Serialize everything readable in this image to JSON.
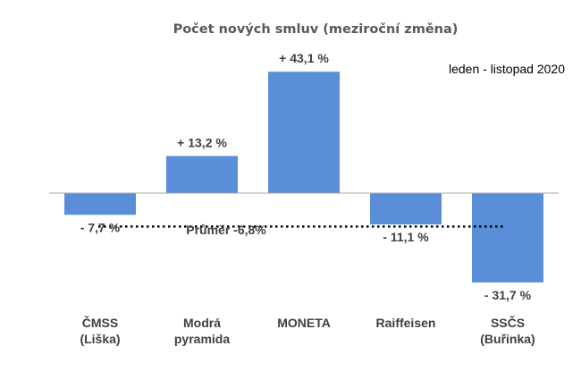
{
  "chart_data": {
    "type": "bar",
    "title": "Počet nových smluv (meziroční změna)",
    "subtitle": "leden - listopad 2020",
    "categories": [
      [
        "ČMSS",
        "(Liška)"
      ],
      [
        "Modrá",
        "pyramida"
      ],
      [
        "MONETA"
      ],
      [
        "Raiffeisen"
      ],
      [
        "SSČS",
        "(Buřinka)"
      ]
    ],
    "values": [
      -7.7,
      13.2,
      43.1,
      -11.1,
      -31.7
    ],
    "data_labels": [
      "- 7,7 %",
      "+ 13,2 %",
      "+ 43,1 %",
      "- 11,1 %",
      "- 31,7 %"
    ],
    "average": {
      "value": -6.8,
      "label": "Průměr -6,8%"
    },
    "ylim": [
      -33,
      44
    ],
    "bar_color": "#5B8ED8",
    "xlabel": "",
    "ylabel": "",
    "grid": false
  }
}
